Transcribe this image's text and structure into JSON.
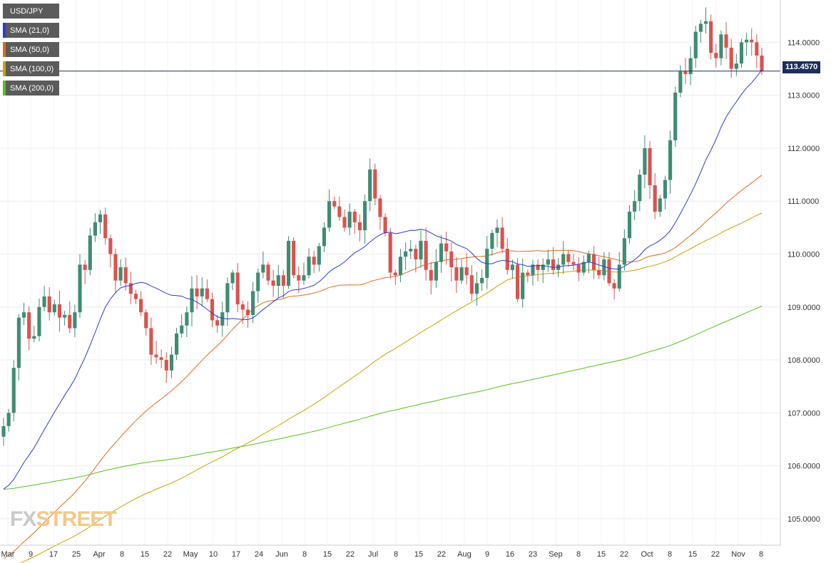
{
  "chart_data": {
    "type": "candlestick",
    "symbol": "USD/JPY",
    "y_ticks": [
      "114.0000",
      "113.0000",
      "112.0000",
      "111.0000",
      "110.0000",
      "109.0000",
      "108.0000",
      "107.0000",
      "106.0000",
      "105.0000"
    ],
    "y_tick_values": [
      114,
      113,
      112,
      111,
      110,
      109,
      108,
      107,
      106,
      105
    ],
    "ylim": [
      104.5,
      114.8
    ],
    "x_ticks": [
      "Mar",
      "9",
      "17",
      "25",
      "Apr",
      "8",
      "15",
      "22",
      "May",
      "10",
      "17",
      "24",
      "Jun",
      "8",
      "15",
      "22",
      "Jul",
      "8",
      "15",
      "22",
      "Aug",
      "9",
      "16",
      "23",
      "Sep",
      "8",
      "15",
      "22",
      "Oct",
      "8",
      "15",
      "22",
      "Nov",
      "8"
    ],
    "last_price": "113.4570",
    "up_color": "#3f8c73",
    "down_color": "#d9534f",
    "grid": true,
    "legend_position": "top-left",
    "series": [
      {
        "name": "USD/JPY",
        "color": "#5b5b5b"
      },
      {
        "name": "SMA (21,0)",
        "color": "#2b3bd6"
      },
      {
        "name": "SMA (50,0)",
        "color": "#e06b1c"
      },
      {
        "name": "SMA (100,0)",
        "color": "#c9a400"
      },
      {
        "name": "SMA (200,0)",
        "color": "#55c21a"
      }
    ],
    "closes": [
      106.75,
      107.0,
      107.85,
      108.8,
      108.9,
      108.4,
      108.45,
      109.0,
      109.2,
      108.9,
      109.05,
      108.8,
      108.85,
      108.6,
      108.9,
      109.8,
      109.7,
      110.35,
      110.6,
      110.75,
      110.3,
      110.0,
      109.5,
      109.75,
      109.45,
      109.25,
      109.15,
      108.9,
      108.6,
      108.1,
      108.05,
      108.0,
      107.8,
      108.1,
      108.5,
      108.65,
      108.9,
      109.35,
      109.2,
      109.35,
      109.15,
      108.75,
      108.65,
      108.9,
      109.45,
      109.65,
      109.05,
      108.95,
      108.85,
      109.3,
      109.65,
      109.8,
      109.5,
      109.4,
      109.6,
      109.4,
      110.25,
      109.6,
      109.5,
      109.6,
      109.95,
      109.8,
      110.15,
      110.5,
      111.0,
      110.9,
      110.7,
      110.5,
      110.8,
      110.6,
      110.45,
      111.0,
      111.6,
      111.05,
      110.7,
      110.4,
      109.65,
      109.6,
      109.95,
      110.05,
      110.1,
      109.9,
      110.25,
      109.7,
      109.5,
      109.85,
      110.2,
      110.05,
      109.75,
      109.5,
      109.75,
      109.6,
      109.25,
      109.45,
      109.55,
      110.1,
      110.4,
      110.5,
      110.1,
      109.7,
      109.8,
      109.15,
      109.65,
      109.6,
      109.8,
      109.7,
      109.8,
      109.9,
      109.7,
      109.8,
      110.0,
      109.85,
      109.8,
      109.65,
      109.85,
      110.0,
      109.7,
      109.6,
      109.9,
      109.45,
      109.35,
      109.8,
      110.3,
      110.8,
      111.0,
      111.5,
      112.0,
      111.3,
      110.8,
      111.05,
      111.4,
      112.15,
      113.05,
      113.45,
      113.4,
      113.7,
      114.2,
      114.35,
      114.4,
      113.8,
      113.7,
      114.15,
      113.9,
      113.5,
      113.6,
      114.0,
      114.05,
      114.0,
      113.75,
      113.457
    ]
  }
}
